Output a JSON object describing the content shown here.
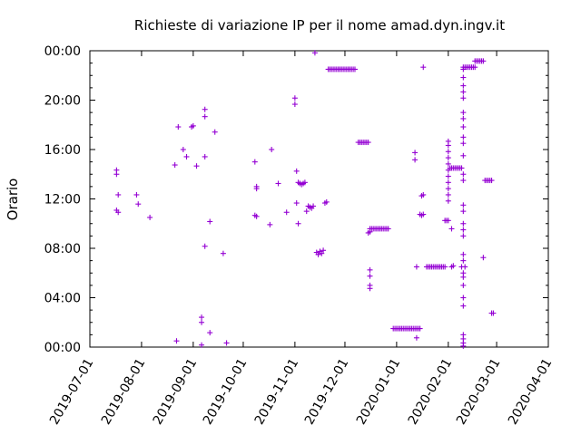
{
  "chart_data": {
    "type": "scatter",
    "title": "Richieste di variazione IP per il nome amad.dyn.ingv.it",
    "xlabel": "",
    "ylabel": "Orario",
    "x_type": "date",
    "xlim": [
      "2019-07-01",
      "2020-04-01"
    ],
    "ylim": [
      "00:00",
      "24:00"
    ],
    "x_ticks": [
      "2019-07-01",
      "2019-08-01",
      "2019-09-01",
      "2019-10-01",
      "2019-11-01",
      "2019-12-01",
      "2020-01-01",
      "2020-02-01",
      "2020-03-01",
      "2020-04-01"
    ],
    "y_ticks": [
      "00:00",
      "04:00",
      "08:00",
      "12:00",
      "16:00",
      "20:00",
      "00:00"
    ],
    "grid": false,
    "marker": "+",
    "color": "#9400d3",
    "series": [
      {
        "points": [
          [
            "2019-07-17",
            "14:20"
          ],
          [
            "2019-07-17",
            "14:00"
          ],
          [
            "2019-07-17",
            "11:05"
          ],
          [
            "2019-07-18",
            "10:55"
          ],
          [
            "2019-07-18",
            "12:20"
          ],
          [
            "2019-07-29",
            "12:20"
          ],
          [
            "2019-07-30",
            "11:35"
          ],
          [
            "2019-08-06",
            "10:30"
          ],
          [
            "2019-08-21",
            "14:45"
          ],
          [
            "2019-08-22",
            "00:30"
          ],
          [
            "2019-08-23",
            "17:50"
          ],
          [
            "2019-08-26",
            "16:00"
          ],
          [
            "2019-08-28",
            "15:25"
          ],
          [
            "2019-08-31",
            "17:50"
          ],
          [
            "2019-09-01",
            "17:55"
          ],
          [
            "2019-09-03",
            "14:40"
          ],
          [
            "2019-09-06",
            "02:25"
          ],
          [
            "2019-09-06",
            "02:00"
          ],
          [
            "2019-09-06",
            "00:10"
          ],
          [
            "2019-09-08",
            "19:15"
          ],
          [
            "2019-09-08",
            "18:40"
          ],
          [
            "2019-09-08",
            "15:25"
          ],
          [
            "2019-09-08",
            "08:10"
          ],
          [
            "2019-09-11",
            "10:10"
          ],
          [
            "2019-09-11",
            "01:10"
          ],
          [
            "2019-09-14",
            "17:25"
          ],
          [
            "2019-09-19",
            "07:35"
          ],
          [
            "2019-09-21",
            "00:20"
          ],
          [
            "2019-10-08",
            "15:00"
          ],
          [
            "2019-10-09",
            "13:00"
          ],
          [
            "2019-10-09",
            "12:50"
          ],
          [
            "2019-10-08",
            "10:40"
          ],
          [
            "2019-10-09",
            "10:35"
          ],
          [
            "2019-10-18",
            "16:00"
          ],
          [
            "2019-10-17",
            "09:55"
          ],
          [
            "2019-10-22",
            "13:15"
          ],
          [
            "2019-10-27",
            "10:55"
          ],
          [
            "2019-11-01",
            "20:10"
          ],
          [
            "2019-11-01",
            "19:40"
          ],
          [
            "2019-11-02",
            "14:15"
          ],
          [
            "2019-11-02",
            "11:40"
          ],
          [
            "2019-11-03",
            "10:00"
          ],
          [
            "2019-11-03",
            "13:20"
          ],
          [
            "2019-11-04",
            "13:15"
          ],
          [
            "2019-11-05",
            "13:10"
          ],
          [
            "2019-11-06",
            "13:15"
          ],
          [
            "2019-11-07",
            "13:20"
          ],
          [
            "2019-11-08",
            "11:00"
          ],
          [
            "2019-11-09",
            "11:25"
          ],
          [
            "2019-11-10",
            "11:20"
          ],
          [
            "2019-11-11",
            "11:15"
          ],
          [
            "2019-11-12",
            "11:25"
          ],
          [
            "2019-11-13",
            "23:50"
          ],
          [
            "2019-11-14",
            "07:40"
          ],
          [
            "2019-11-15",
            "07:30"
          ],
          [
            "2019-11-16",
            "07:45"
          ],
          [
            "2019-11-17",
            "07:35"
          ],
          [
            "2019-11-18",
            "07:50"
          ],
          [
            "2019-11-19",
            "11:40"
          ],
          [
            "2019-11-20",
            "11:45"
          ],
          [
            "2019-11-21",
            "22:30"
          ],
          [
            "2019-11-22",
            "22:30"
          ],
          [
            "2019-11-23",
            "22:30"
          ],
          [
            "2019-11-24",
            "22:30"
          ],
          [
            "2019-11-25",
            "22:30"
          ],
          [
            "2019-11-26",
            "22:30"
          ],
          [
            "2019-11-27",
            "22:30"
          ],
          [
            "2019-11-28",
            "22:30"
          ],
          [
            "2019-11-29",
            "22:30"
          ],
          [
            "2019-11-30",
            "22:30"
          ],
          [
            "2019-12-01",
            "22:30"
          ],
          [
            "2019-12-02",
            "22:30"
          ],
          [
            "2019-12-03",
            "22:30"
          ],
          [
            "2019-12-04",
            "22:30"
          ],
          [
            "2019-12-05",
            "22:30"
          ],
          [
            "2019-12-06",
            "22:30"
          ],
          [
            "2019-12-07",
            "22:30"
          ],
          [
            "2019-12-09",
            "16:35"
          ],
          [
            "2019-12-10",
            "16:35"
          ],
          [
            "2019-12-11",
            "16:35"
          ],
          [
            "2019-12-12",
            "16:35"
          ],
          [
            "2019-12-13",
            "16:35"
          ],
          [
            "2019-12-14",
            "16:35"
          ],
          [
            "2019-12-15",
            "16:35"
          ],
          [
            "2019-12-15",
            "09:15"
          ],
          [
            "2019-12-16",
            "09:20"
          ],
          [
            "2019-12-16",
            "09:35"
          ],
          [
            "2019-12-17",
            "09:35"
          ],
          [
            "2019-12-18",
            "09:35"
          ],
          [
            "2019-12-19",
            "09:35"
          ],
          [
            "2019-12-20",
            "09:35"
          ],
          [
            "2019-12-21",
            "09:35"
          ],
          [
            "2019-12-22",
            "09:35"
          ],
          [
            "2019-12-23",
            "09:35"
          ],
          [
            "2019-12-24",
            "09:35"
          ],
          [
            "2019-12-25",
            "09:35"
          ],
          [
            "2019-12-26",
            "09:35"
          ],
          [
            "2019-12-27",
            "09:35"
          ],
          [
            "2019-12-16",
            "06:15"
          ],
          [
            "2019-12-16",
            "05:45"
          ],
          [
            "2019-12-16",
            "05:00"
          ],
          [
            "2019-12-16",
            "04:45"
          ],
          [
            "2019-12-30",
            "01:30"
          ],
          [
            "2019-12-31",
            "01:30"
          ],
          [
            "2020-01-01",
            "01:30"
          ],
          [
            "2020-01-02",
            "01:30"
          ],
          [
            "2020-01-03",
            "01:30"
          ],
          [
            "2020-01-04",
            "01:30"
          ],
          [
            "2020-01-05",
            "01:30"
          ],
          [
            "2020-01-06",
            "01:30"
          ],
          [
            "2020-01-07",
            "01:30"
          ],
          [
            "2020-01-08",
            "01:30"
          ],
          [
            "2020-01-09",
            "01:30"
          ],
          [
            "2020-01-10",
            "01:30"
          ],
          [
            "2020-01-11",
            "01:30"
          ],
          [
            "2020-01-12",
            "01:30"
          ],
          [
            "2020-01-13",
            "01:30"
          ],
          [
            "2020-01-14",
            "01:30"
          ],
          [
            "2020-01-15",
            "01:30"
          ],
          [
            "2020-01-13",
            "00:45"
          ],
          [
            "2020-01-12",
            "15:45"
          ],
          [
            "2020-01-12",
            "15:10"
          ],
          [
            "2020-01-13",
            "06:30"
          ],
          [
            "2020-01-15",
            "10:45"
          ],
          [
            "2020-01-16",
            "10:40"
          ],
          [
            "2020-01-17",
            "10:45"
          ],
          [
            "2020-01-16",
            "12:15"
          ],
          [
            "2020-01-17",
            "12:20"
          ],
          [
            "2020-01-17",
            "22:40"
          ],
          [
            "2020-01-19",
            "06:30"
          ],
          [
            "2020-01-20",
            "06:30"
          ],
          [
            "2020-01-21",
            "06:30"
          ],
          [
            "2020-01-22",
            "06:30"
          ],
          [
            "2020-01-23",
            "06:30"
          ],
          [
            "2020-01-24",
            "06:30"
          ],
          [
            "2020-01-25",
            "06:30"
          ],
          [
            "2020-01-26",
            "06:30"
          ],
          [
            "2020-01-27",
            "06:30"
          ],
          [
            "2020-01-28",
            "06:30"
          ],
          [
            "2020-01-29",
            "06:30"
          ],
          [
            "2020-01-30",
            "06:30"
          ],
          [
            "2020-01-30",
            "10:15"
          ],
          [
            "2020-01-31",
            "10:15"
          ],
          [
            "2020-02-01",
            "10:15"
          ],
          [
            "2020-02-01",
            "16:40"
          ],
          [
            "2020-02-01",
            "16:20"
          ],
          [
            "2020-02-01",
            "15:50"
          ],
          [
            "2020-02-01",
            "15:20"
          ],
          [
            "2020-02-01",
            "14:50"
          ],
          [
            "2020-02-01",
            "14:20"
          ],
          [
            "2020-02-01",
            "13:50"
          ],
          [
            "2020-02-01",
            "13:20"
          ],
          [
            "2020-02-01",
            "12:50"
          ],
          [
            "2020-02-01",
            "12:20"
          ],
          [
            "2020-02-01",
            "11:50"
          ],
          [
            "2020-02-02",
            "14:30"
          ],
          [
            "2020-02-03",
            "14:30"
          ],
          [
            "2020-02-04",
            "14:30"
          ],
          [
            "2020-02-05",
            "14:30"
          ],
          [
            "2020-02-06",
            "14:30"
          ],
          [
            "2020-02-07",
            "14:30"
          ],
          [
            "2020-02-08",
            "14:30"
          ],
          [
            "2020-02-09",
            "14:30"
          ],
          [
            "2020-02-03",
            "09:35"
          ],
          [
            "2020-02-03",
            "06:30"
          ],
          [
            "2020-02-04",
            "06:35"
          ],
          [
            "2020-02-10",
            "22:30"
          ],
          [
            "2020-02-10",
            "21:50"
          ],
          [
            "2020-02-10",
            "21:10"
          ],
          [
            "2020-02-10",
            "20:40"
          ],
          [
            "2020-02-10",
            "20:10"
          ],
          [
            "2020-02-10",
            "19:00"
          ],
          [
            "2020-02-10",
            "18:30"
          ],
          [
            "2020-02-10",
            "17:50"
          ],
          [
            "2020-02-10",
            "17:00"
          ],
          [
            "2020-02-10",
            "16:30"
          ],
          [
            "2020-02-10",
            "15:30"
          ],
          [
            "2020-02-10",
            "14:00"
          ],
          [
            "2020-02-10",
            "13:30"
          ],
          [
            "2020-02-10",
            "11:30"
          ],
          [
            "2020-02-10",
            "11:00"
          ],
          [
            "2020-02-10",
            "10:00"
          ],
          [
            "2020-02-10",
            "09:30"
          ],
          [
            "2020-02-10",
            "09:00"
          ],
          [
            "2020-02-10",
            "07:30"
          ],
          [
            "2020-02-10",
            "07:00"
          ],
          [
            "2020-02-10",
            "06:00"
          ],
          [
            "2020-02-10",
            "05:40"
          ],
          [
            "2020-02-10",
            "05:00"
          ],
          [
            "2020-02-10",
            "04:00"
          ],
          [
            "2020-02-10",
            "03:20"
          ],
          [
            "2020-02-10",
            "01:00"
          ],
          [
            "2020-02-10",
            "00:40"
          ],
          [
            "2020-02-10",
            "00:20"
          ],
          [
            "2020-02-10",
            "00:05"
          ],
          [
            "2020-02-09",
            "06:30"
          ],
          [
            "2020-02-11",
            "06:30"
          ],
          [
            "2020-02-10",
            "22:40"
          ],
          [
            "2020-02-11",
            "22:40"
          ],
          [
            "2020-02-12",
            "22:40"
          ],
          [
            "2020-02-13",
            "22:40"
          ],
          [
            "2020-02-14",
            "22:40"
          ],
          [
            "2020-02-15",
            "22:40"
          ],
          [
            "2020-02-16",
            "22:40"
          ],
          [
            "2020-02-17",
            "22:40"
          ],
          [
            "2020-02-17",
            "23:10"
          ],
          [
            "2020-02-18",
            "23:10"
          ],
          [
            "2020-02-19",
            "23:10"
          ],
          [
            "2020-02-20",
            "23:10"
          ],
          [
            "2020-02-21",
            "23:10"
          ],
          [
            "2020-02-22",
            "23:10"
          ],
          [
            "2020-02-23",
            "13:30"
          ],
          [
            "2020-02-24",
            "13:30"
          ],
          [
            "2020-02-25",
            "13:30"
          ],
          [
            "2020-02-26",
            "13:30"
          ],
          [
            "2020-02-27",
            "13:30"
          ],
          [
            "2020-02-22",
            "07:15"
          ],
          [
            "2020-02-27",
            "02:45"
          ],
          [
            "2020-02-28",
            "02:45"
          ]
        ]
      }
    ]
  }
}
